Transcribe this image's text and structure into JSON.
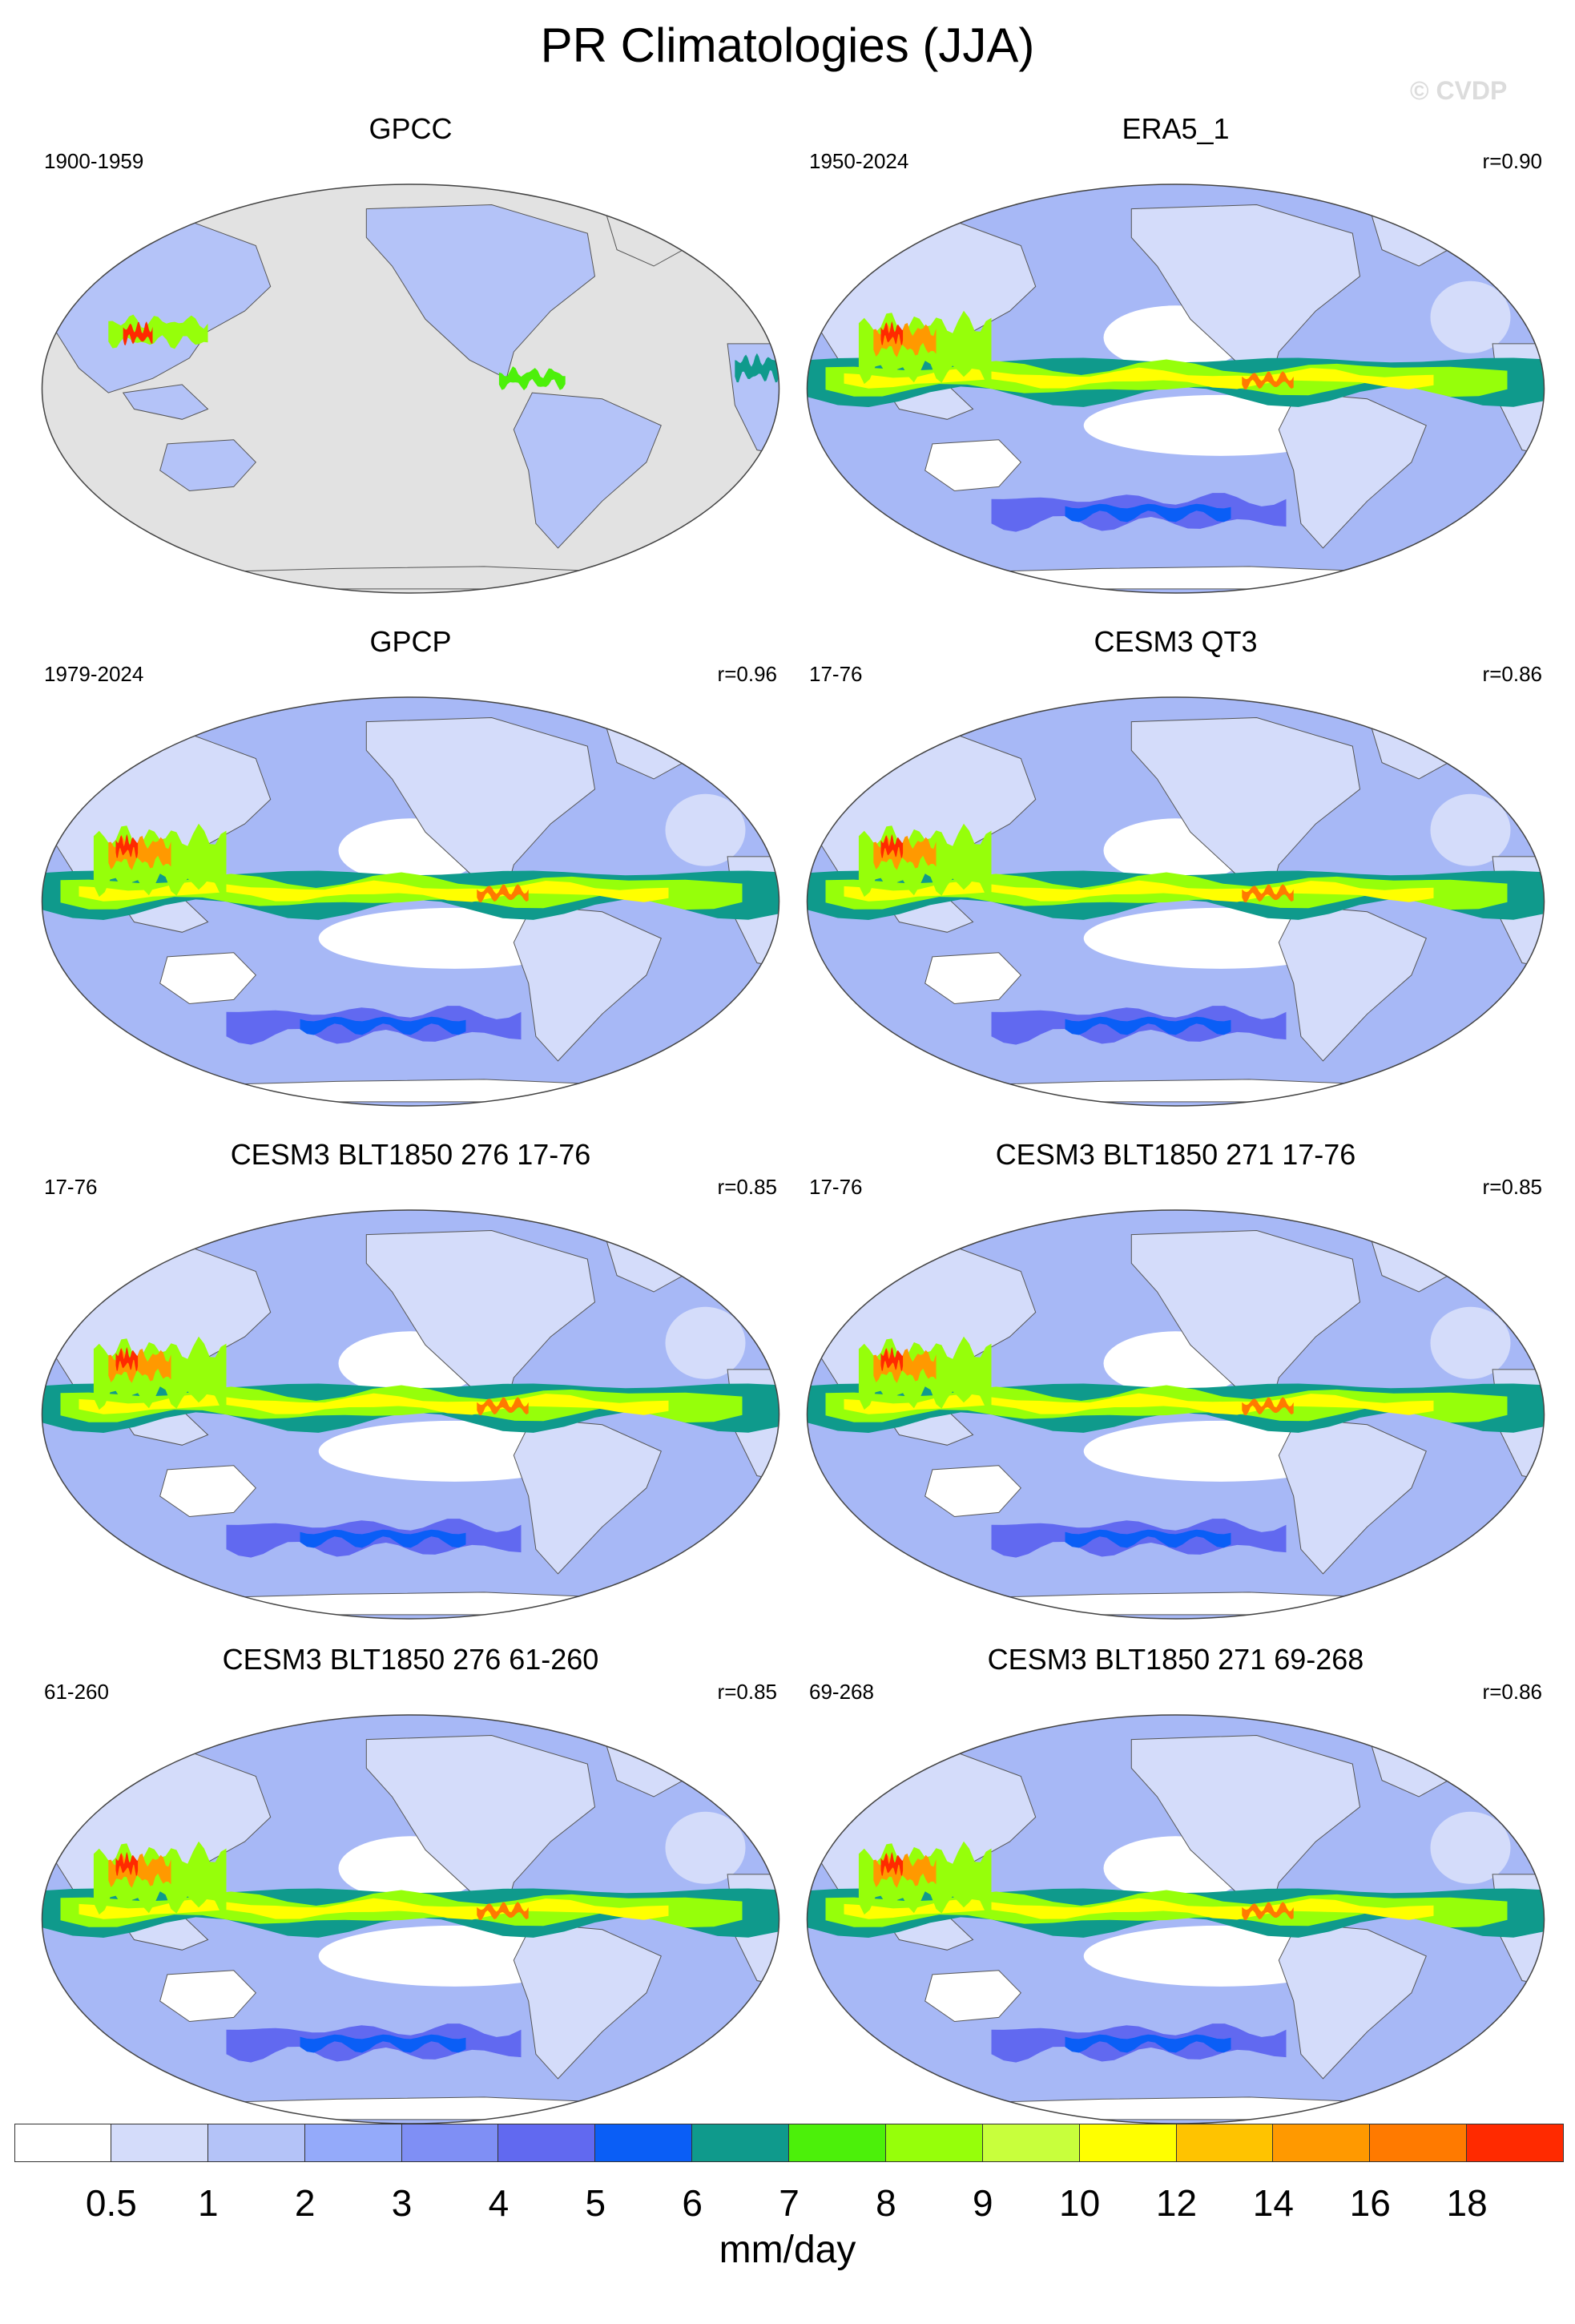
{
  "figure": {
    "title": "PR Climatologies (JJA)",
    "watermark": "© CVDP",
    "units": "mm/day"
  },
  "panels": [
    {
      "title": "GPCC",
      "period": "1900-1959",
      "corr": "",
      "kind": "land"
    },
    {
      "title": "ERA5_1",
      "period": "1950-2024",
      "corr": "r=0.90",
      "kind": "full"
    },
    {
      "title": "GPCP",
      "period": "1979-2024",
      "corr": "r=0.96",
      "kind": "full"
    },
    {
      "title": "CESM3 QT3",
      "period": "17-76",
      "corr": "r=0.86",
      "kind": "full"
    },
    {
      "title": "CESM3 BLT1850 276 17-76",
      "period": "17-76",
      "corr": "r=0.85",
      "kind": "full"
    },
    {
      "title": "CESM3 BLT1850 271 17-76",
      "period": "17-76",
      "corr": "r=0.85",
      "kind": "full"
    },
    {
      "title": "CESM3 BLT1850 276 61-260",
      "period": "61-260",
      "corr": "r=0.85",
      "kind": "full"
    },
    {
      "title": "CESM3 BLT1850 271 69-268",
      "period": "69-268",
      "corr": "r=0.86",
      "kind": "full"
    }
  ],
  "colorbar": {
    "levels": [
      "0.5",
      "1",
      "2",
      "3",
      "4",
      "5",
      "6",
      "7",
      "8",
      "9",
      "10",
      "12",
      "14",
      "16",
      "18"
    ],
    "colors": [
      "#ffffff",
      "#d4dcfa",
      "#b4c3f8",
      "#94aafa",
      "#7f8ff5",
      "#6169f0",
      "#0a5ef6",
      "#0f9a8c",
      "#4cf00a",
      "#96ff0a",
      "#c8ff3c",
      "#ffff00",
      "#ffc300",
      "#ff9900",
      "#ff7a00",
      "#ff2a00"
    ]
  },
  "colors": {
    "missing": "#e2e2e2",
    "ocean_base": "#a7b8f6",
    "coast": "#555555"
  }
}
